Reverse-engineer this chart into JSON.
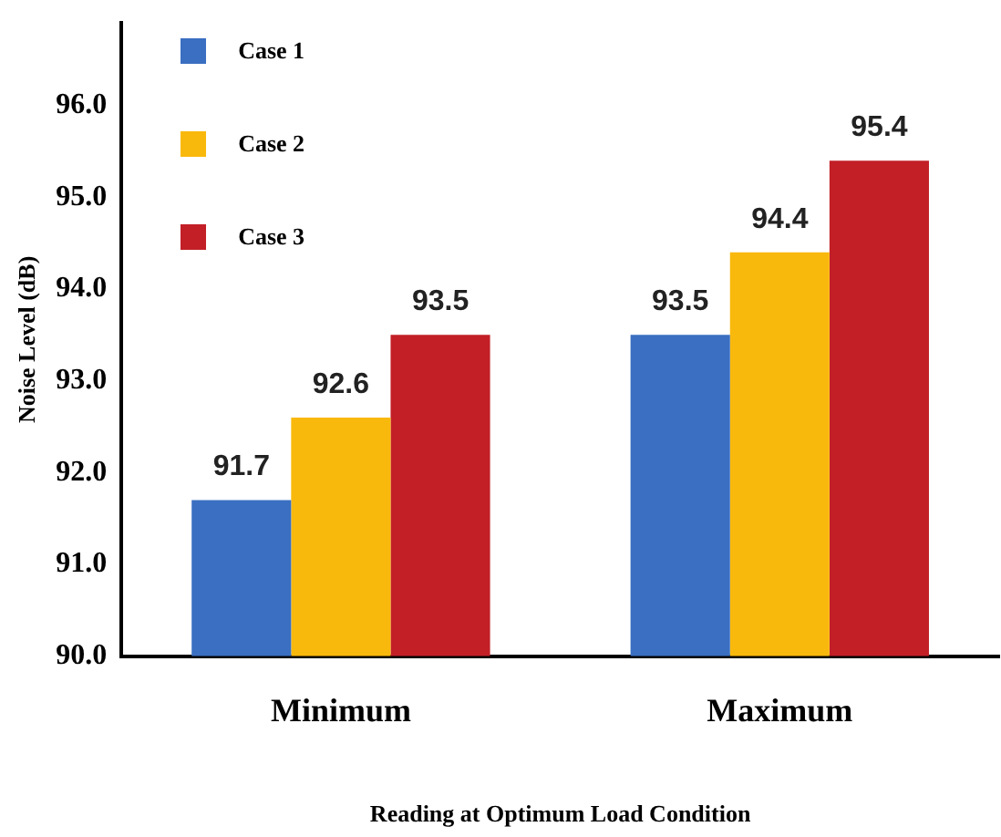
{
  "chart_data": {
    "type": "bar",
    "xlabel": "Reading at Optimum Load Condition",
    "ylabel": "Noise Level (dB)",
    "categories": [
      "Minimum",
      "Maximum"
    ],
    "series": [
      {
        "name": "Case 1",
        "color": "#3a6fc1",
        "values": [
          91.7,
          93.5
        ]
      },
      {
        "name": "Case 2",
        "color": "#f9b90c",
        "values": [
          92.6,
          94.4
        ]
      },
      {
        "name": "Case 3",
        "color": "#c21f27",
        "values": [
          93.5,
          95.4
        ]
      }
    ],
    "ylim": [
      90,
      96.9
    ],
    "yticks": [
      {
        "value": 90,
        "label": "90.0"
      },
      {
        "value": 91,
        "label": "91.0"
      },
      {
        "value": 92,
        "label": "92.0"
      },
      {
        "value": 93,
        "label": "93.0"
      },
      {
        "value": 94,
        "label": "94.0"
      },
      {
        "value": 95,
        "label": "95.0"
      },
      {
        "value": 96,
        "label": "96.0"
      }
    ],
    "data_labels": true,
    "grid": false,
    "legend": "top left"
  }
}
